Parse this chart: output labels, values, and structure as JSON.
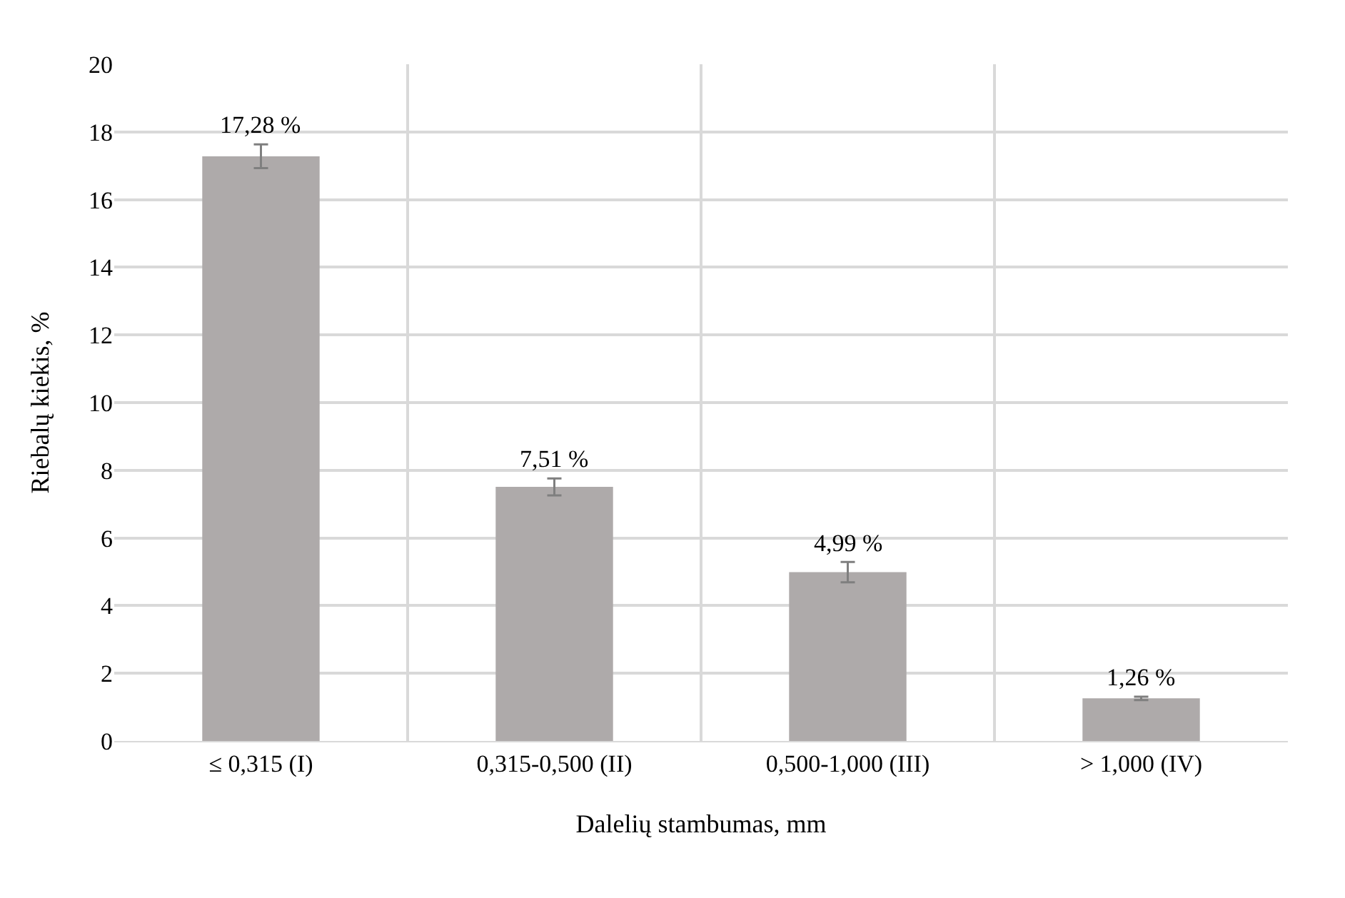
{
  "chart_data": {
    "type": "bar",
    "xlabel": "Dalelių stambumas, mm",
    "ylabel": "Riebalų kiekis, %",
    "categories": [
      "≤ 0,315 (I)",
      "0,315-0,500 (II)",
      "0,500-1,000 (III)",
      "> 1,000 (IV)"
    ],
    "values": [
      17.28,
      7.51,
      4.99,
      1.26
    ],
    "value_labels": [
      "17,28 %",
      "7,51 %",
      "4,99 %",
      "1,26 %"
    ],
    "errors": [
      0.35,
      0.25,
      0.3,
      0.05
    ],
    "color": "#aeaaaa",
    "ylim": [
      0,
      20
    ],
    "yticks": [
      0,
      2,
      4,
      6,
      8,
      10,
      12,
      14,
      16,
      18,
      20
    ],
    "grid": true
  }
}
